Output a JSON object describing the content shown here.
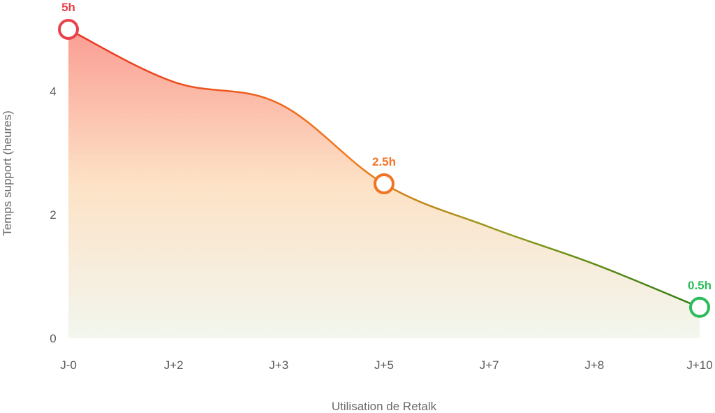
{
  "chart_data": {
    "type": "area",
    "xlabel": "Utilisation de Retalk",
    "ylabel": "Temps support (heures)",
    "x_index": [
      0,
      1,
      2,
      3,
      4,
      5,
      6
    ],
    "x_tick_labels": [
      "J-0",
      "J+2",
      "J+3",
      "J+5",
      "J+7",
      "J+8",
      "J+10"
    ],
    "y_ticks": [
      0,
      2,
      4
    ],
    "ylim": [
      0,
      5
    ],
    "series": [
      {
        "values": [
          5.0,
          4.15,
          3.8,
          2.5,
          1.8,
          1.2,
          0.5
        ]
      }
    ],
    "highlighted_points": [
      {
        "x_index": 0,
        "value": 5.0,
        "label": "5h",
        "color": "#e8424c"
      },
      {
        "x_index": 3,
        "value": 2.5,
        "label": "2.5h",
        "color": "#f07426"
      },
      {
        "x_index": 6,
        "value": 0.5,
        "label": "0.5h",
        "color": "#2cbb5a"
      }
    ],
    "line_gradient_colors": [
      "#e8321f",
      "#f07b1e",
      "#8a9a1a",
      "#2a7a10"
    ],
    "fill_gradient_colors": [
      "#fa9d93",
      "#fde2c6",
      "#f2f6ee"
    ],
    "grid": false
  }
}
